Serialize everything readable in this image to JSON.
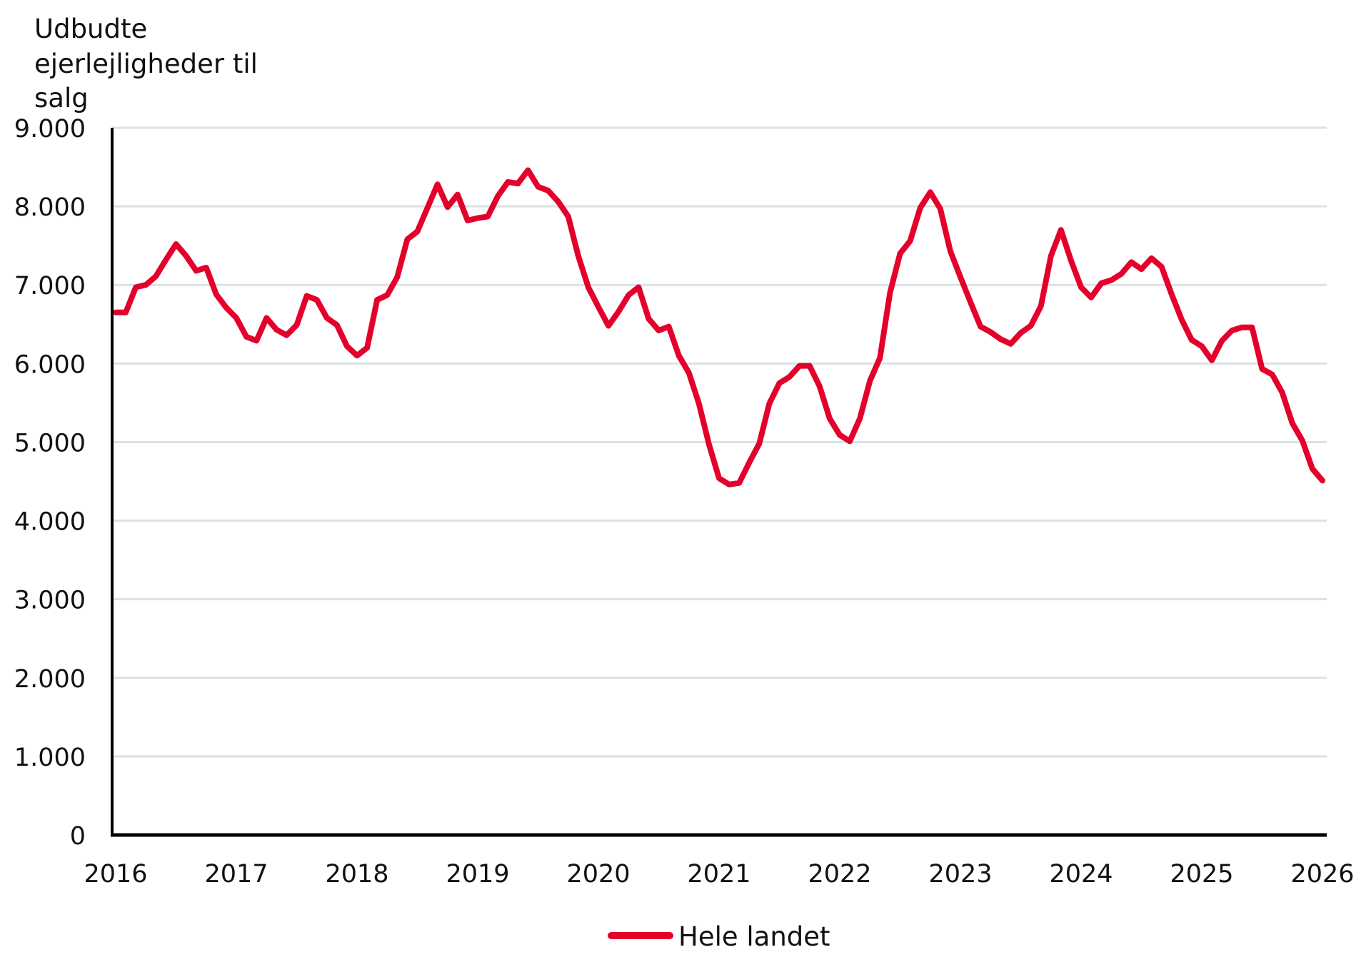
{
  "chart_data": {
    "type": "line",
    "title": "",
    "ylabel_lines": [
      "Udbudte",
      "ejerlejligheder til",
      "salg"
    ],
    "ylabel": "Udbudte ejerlejligheder til salg",
    "xlabel": "",
    "ylim": [
      0,
      9000
    ],
    "yticks": [
      0,
      1000,
      2000,
      3000,
      4000,
      5000,
      6000,
      7000,
      8000,
      9000
    ],
    "ytick_labels": [
      "0",
      "1.000",
      "2.000",
      "3.000",
      "4.000",
      "5.000",
      "6.000",
      "7.000",
      "8.000",
      "9.000"
    ],
    "xlim": [
      2016,
      2026
    ],
    "xticks": [
      2016,
      2017,
      2018,
      2019,
      2020,
      2021,
      2022,
      2023,
      2024,
      2025,
      2026
    ],
    "xtick_labels": [
      "2016",
      "2017",
      "2018",
      "2019",
      "2020",
      "2021",
      "2022",
      "2023",
      "2024",
      "2025",
      "2026"
    ],
    "x_frequency": "monthly",
    "x_start": "2016-01",
    "x_end": "2026-01",
    "grid": "horizontal",
    "legend_position": "bottom-center",
    "series": [
      {
        "name": "Hele landet",
        "color": "#e4002b",
        "values": [
          6650,
          6650,
          6970,
          7000,
          7110,
          7320,
          7520,
          7370,
          7180,
          7220,
          6880,
          6710,
          6580,
          6340,
          6290,
          6580,
          6430,
          6360,
          6490,
          6860,
          6810,
          6580,
          6490,
          6220,
          6100,
          6200,
          6810,
          6870,
          7100,
          7580,
          7680,
          7980,
          8280,
          7990,
          8150,
          7820,
          7850,
          7870,
          8130,
          8310,
          8290,
          8460,
          8250,
          8200,
          8060,
          7870,
          7370,
          6970,
          6720,
          6480,
          6660,
          6870,
          6970,
          6570,
          6420,
          6470,
          6100,
          5880,
          5490,
          4970,
          4540,
          4460,
          4480,
          4740,
          4980,
          5490,
          5750,
          5830,
          5970,
          5970,
          5710,
          5300,
          5090,
          5010,
          5300,
          5780,
          6070,
          6900,
          7400,
          7560,
          7980,
          8180,
          7970,
          7430,
          7100,
          6780,
          6470,
          6400,
          6310,
          6250,
          6390,
          6480,
          6730,
          7370,
          7700,
          7310,
          6970,
          6840,
          7020,
          7060,
          7140,
          7290,
          7200,
          7340,
          7230,
          6880,
          6560,
          6300,
          6220,
          6040,
          6290,
          6420,
          6460,
          6460,
          5930,
          5860,
          5630,
          5240,
          5020,
          4660,
          4510
        ]
      }
    ],
    "colors": {
      "gridline": "#d9e3e3",
      "axis": "#000000",
      "text": "#111111"
    }
  }
}
